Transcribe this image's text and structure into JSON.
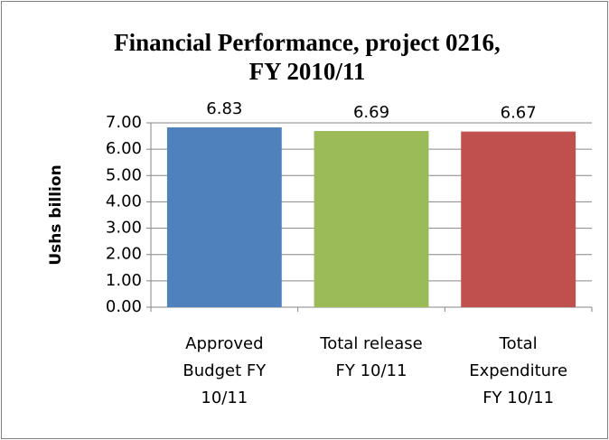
{
  "chart_data": {
    "type": "bar",
    "title": [
      "Financial Performance, project 0216,",
      "FY 2010/11"
    ],
    "ylabel": "Ushs billion",
    "categories": [
      [
        "Approved",
        "Budget FY",
        "10/11"
      ],
      [
        "Total release",
        "FY 10/11"
      ],
      [
        "Total",
        "Expenditure",
        "FY 10/11"
      ]
    ],
    "values": [
      6.83,
      6.69,
      6.67
    ],
    "colors": [
      "#4f81bd",
      "#9bbb59",
      "#c0504d"
    ],
    "ylim": [
      0,
      7
    ],
    "yticks": [
      {
        "value": 0,
        "label": "0.00"
      },
      {
        "value": 1,
        "label": "1.00"
      },
      {
        "value": 2,
        "label": "2.00"
      },
      {
        "value": 3,
        "label": "3.00"
      },
      {
        "value": 4,
        "label": "4.00"
      },
      {
        "value": 5,
        "label": "5.00"
      },
      {
        "value": 6,
        "label": "6.00"
      },
      {
        "value": 7,
        "label": "7.00"
      }
    ],
    "grid": true
  }
}
